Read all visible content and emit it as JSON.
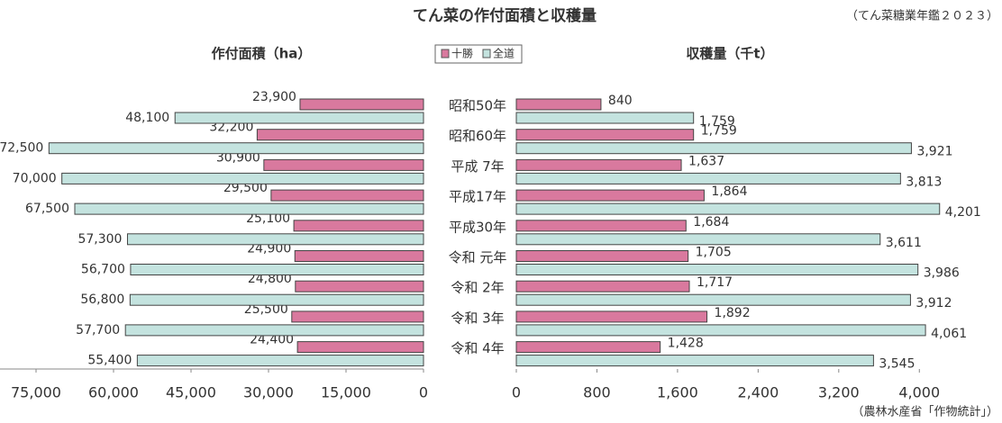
{
  "title": "てん菜の作付面積と収穫量",
  "source_top": "（てん菜糖業年鑑２０２３）",
  "source_bottom": "（農林水産省「作物統計」）",
  "chart_data": [
    {
      "type": "bar",
      "orientation": "horizontal",
      "title": "作付面積（ha）",
      "categories": [
        "昭和50年",
        "昭和60年",
        "平成 7年",
        "平成17年",
        "平成30年",
        "令和 元年",
        "令和 2年",
        "令和 3年",
        "令和 4年"
      ],
      "series": [
        {
          "name": "十勝",
          "color": "#d9799e",
          "values": [
            23900,
            32200,
            30900,
            29500,
            25100,
            24900,
            24800,
            25500,
            24400
          ],
          "value_labels": [
            "23,900",
            "32,200",
            "30,900",
            "29,500",
            "25,100",
            "24,900",
            "24,800",
            "25,500",
            "24,400"
          ]
        },
        {
          "name": "全道",
          "color": "#c4e3df",
          "values": [
            48100,
            72500,
            70000,
            67500,
            57300,
            56700,
            56800,
            57700,
            55400
          ],
          "value_labels": [
            "48,100",
            "72,500",
            "70,000",
            "67,500",
            "57,300",
            "56,700",
            "56,800",
            "57,700",
            "55,400"
          ]
        }
      ],
      "xlim": [
        0,
        75000
      ],
      "xticks": [
        {
          "value": 75000,
          "label": "75,000"
        },
        {
          "value": 60000,
          "label": "60,000"
        },
        {
          "value": 45000,
          "label": "45,000"
        },
        {
          "value": 30000,
          "label": "30,000"
        },
        {
          "value": 15000,
          "label": "15,000"
        },
        0
      ],
      "reversed": true
    },
    {
      "type": "bar",
      "orientation": "horizontal",
      "title": "収穫量（千t）",
      "series": [
        {
          "color": "#d9799e",
          "values": [
            840,
            1759,
            1637,
            1864,
            1684,
            1705,
            1717,
            1892,
            1428
          ],
          "value_labels": [
            "840",
            "1,759",
            "1,637",
            "1,864",
            "1,684",
            "1,705",
            "1,717",
            "1,892",
            "1,428"
          ]
        },
        {
          "color": "#c4e3df",
          "values": [
            1759,
            3921,
            3813,
            4201,
            3611,
            3986,
            3912,
            4061,
            3545
          ],
          "value_labels": [
            "1,759",
            "3,921",
            "3,813",
            "4,201",
            "3,611",
            "3,986",
            "3,912",
            "4,061",
            "3,545"
          ]
        }
      ],
      "xlim": [
        0,
        4400
      ],
      "xticks": [
        0,
        800,
        {
          "value": 1600,
          "label": "1,600"
        },
        {
          "value": 2400,
          "label": "2,400"
        },
        {
          "value": 3200,
          "label": "3,200"
        },
        {
          "value": 4000,
          "label": "4,000"
        }
      ]
    }
  ]
}
